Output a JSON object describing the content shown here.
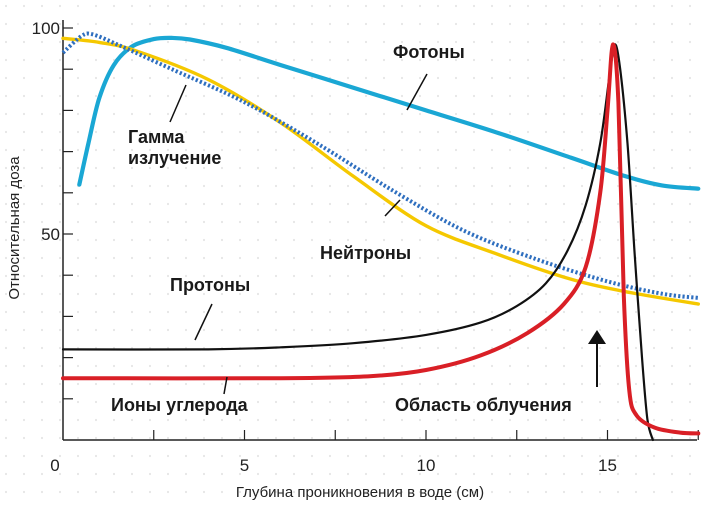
{
  "chart_data": {
    "type": "line",
    "xlabel": "Глубина проникновения в воде (см)",
    "ylabel": "Относительная доза",
    "xlim": [
      0,
      17.5
    ],
    "ylim": [
      0,
      100
    ],
    "x_ticks": [
      0,
      5,
      10,
      15
    ],
    "x_tick_labels": [
      "0",
      "5",
      "10",
      "15"
    ],
    "y_ticks": [
      50,
      100
    ],
    "y_tick_labels": [
      "50",
      "100"
    ],
    "grid": false,
    "annotation": "Область облучения",
    "series": [
      {
        "name": "Фотоны",
        "color": "#1aa7d4",
        "style": "solid",
        "points": [
          [
            0.45,
            62
          ],
          [
            0.7,
            72
          ],
          [
            1.0,
            83
          ],
          [
            1.4,
            91
          ],
          [
            1.9,
            95.5
          ],
          [
            2.5,
            97.3
          ],
          [
            3.0,
            97.6
          ],
          [
            3.5,
            97.2
          ],
          [
            4.5,
            95.2
          ],
          [
            6,
            91
          ],
          [
            8,
            85.5
          ],
          [
            10,
            80
          ],
          [
            12,
            74.5
          ],
          [
            14,
            68.5
          ],
          [
            15.5,
            64
          ],
          [
            16.5,
            61.8
          ],
          [
            17.5,
            61
          ]
        ]
      },
      {
        "name": "Нейтроны",
        "color": "#f5c800",
        "style": "solid",
        "points": [
          [
            0,
            97.5
          ],
          [
            1,
            96.5
          ],
          [
            2,
            94.5
          ],
          [
            4,
            87.5
          ],
          [
            6,
            77
          ],
          [
            8,
            64
          ],
          [
            10,
            52
          ],
          [
            12,
            45
          ],
          [
            14,
            39
          ],
          [
            15.5,
            36
          ],
          [
            17.5,
            33
          ]
        ]
      },
      {
        "name": "Гамма излучение",
        "color": "#2f6fbf",
        "style": "dotted",
        "points": [
          [
            0,
            94
          ],
          [
            0.5,
            98
          ],
          [
            0.8,
            98.5
          ],
          [
            1.5,
            96
          ],
          [
            3,
            90
          ],
          [
            5,
            82
          ],
          [
            7,
            72
          ],
          [
            9,
            61
          ],
          [
            11,
            51
          ],
          [
            13,
            44
          ],
          [
            15,
            38.5
          ],
          [
            16.5,
            35.5
          ],
          [
            17.5,
            34.5
          ]
        ]
      },
      {
        "name": "Протоны",
        "color": "#111111",
        "style": "solid",
        "points": [
          [
            0,
            22
          ],
          [
            4,
            22
          ],
          [
            6,
            22.5
          ],
          [
            8,
            23.5
          ],
          [
            10,
            25.5
          ],
          [
            11.5,
            28.5
          ],
          [
            12.5,
            32.5
          ],
          [
            13.3,
            38
          ],
          [
            13.9,
            46
          ],
          [
            14.4,
            57
          ],
          [
            14.8,
            72
          ],
          [
            15.05,
            88
          ],
          [
            15.2,
            96
          ],
          [
            15.35,
            90
          ],
          [
            15.55,
            72
          ],
          [
            15.75,
            45
          ],
          [
            15.95,
            20
          ],
          [
            16.1,
            5
          ],
          [
            16.25,
            0
          ]
        ]
      },
      {
        "name": "Ионы углерода",
        "color": "#d91f26",
        "style": "solid",
        "points": [
          [
            0,
            15
          ],
          [
            6,
            15
          ],
          [
            8.5,
            15.5
          ],
          [
            10,
            17
          ],
          [
            11.5,
            20.5
          ],
          [
            12.8,
            26
          ],
          [
            13.8,
            33
          ],
          [
            14.4,
            42
          ],
          [
            14.8,
            60
          ],
          [
            15.0,
            80
          ],
          [
            15.15,
            96
          ],
          [
            15.3,
            82
          ],
          [
            15.45,
            35
          ],
          [
            15.6,
            12
          ],
          [
            15.8,
            6
          ],
          [
            16.3,
            3
          ],
          [
            17.0,
            1.8
          ],
          [
            17.5,
            1.6
          ]
        ]
      }
    ],
    "labels": {
      "photons": "Фотоны",
      "gamma_line1": "Гамма",
      "gamma_line2": "излучение",
      "neutrons": "Нейтроны",
      "protons": "Протоны",
      "carbon": "Ионы углерода",
      "region": "Область облучения"
    }
  }
}
